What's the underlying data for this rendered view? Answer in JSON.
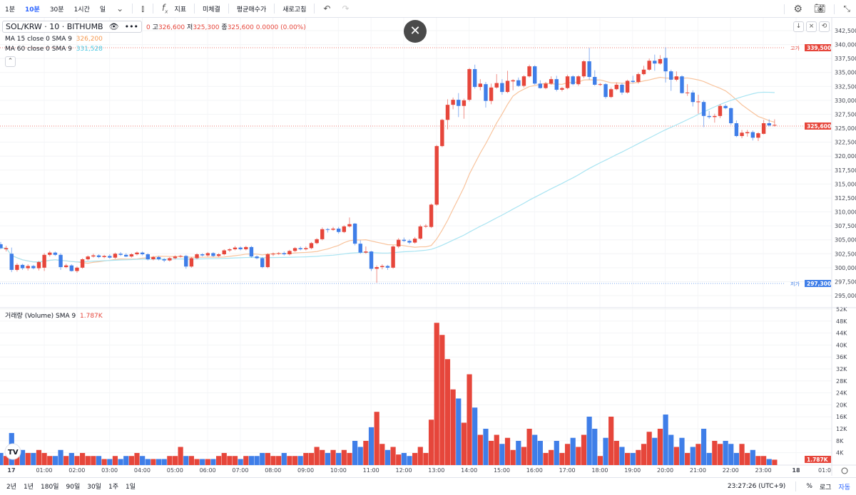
{
  "toolbar": {
    "intervals": [
      "1분",
      "10분",
      "30분",
      "1시간",
      "일"
    ],
    "active_interval": "10분",
    "indicators_label": "지표",
    "unfilled_label": "미체결",
    "avg_buy_label": "평균매수가",
    "refresh_label": "새로고침"
  },
  "legend": {
    "symbol": "SOL/KRW · 10 · BITHUMB",
    "ohlc_partial": "0",
    "high_label": "고",
    "high": "326,600",
    "low_label": "저",
    "low": "325,300",
    "close_label": "종",
    "close": "325,600",
    "change": "0.0000 (0.00%)",
    "ma15_label": "MA 15 close 0 SMA 9",
    "ma15_value": "326,200",
    "ma60_label": "MA 60 close 0 SMA 9",
    "ma60_value": "331,528",
    "volume_label": "거래량 (Volume) SMA 9",
    "volume_value": "1.787K"
  },
  "colors": {
    "up": "#e6463b",
    "down": "#3f7ee8",
    "ma15": "#f8c39c",
    "ma60": "#a8e4f2"
  },
  "price_axis": {
    "ticks": [
      "342,500",
      "340,000",
      "337,500",
      "335,000",
      "332,500",
      "330,000",
      "327,500",
      "325,000",
      "322,500",
      "320,000",
      "317,500",
      "315,000",
      "312,500",
      "310,000",
      "307,500",
      "305,000",
      "302,500",
      "300,000",
      "297,500",
      "295,000"
    ],
    "high_tag": "339,500",
    "high_tag_label": "고가",
    "current_tag": "325,600",
    "low_tag": "297,300",
    "low_tag_label": "저가"
  },
  "volume_axis": {
    "ticks": [
      "52K",
      "48K",
      "44K",
      "40K",
      "36K",
      "32K",
      "28K",
      "24K",
      "20K",
      "16K",
      "12K",
      "8K",
      "4K"
    ],
    "current_tag": "1.787K"
  },
  "time_axis": [
    "17",
    "01:00",
    "02:00",
    "03:00",
    "04:00",
    "05:00",
    "06:00",
    "07:00",
    "08:00",
    "09:00",
    "10:00",
    "11:00",
    "12:00",
    "13:00",
    "14:00",
    "15:00",
    "16:00",
    "17:00",
    "18:00",
    "19:00",
    "20:00",
    "21:00",
    "22:00",
    "23:00",
    "18",
    "01:0"
  ],
  "bottom": {
    "ranges": [
      "2년",
      "1년",
      "180일",
      "90일",
      "30일",
      "1주",
      "1일"
    ],
    "clock": "23:27:26 (UTC+9)",
    "percent": "%",
    "log": "로그",
    "auto": "자동"
  },
  "chart_data": {
    "type": "candlestick",
    "interval": "10m",
    "ma_periods": [
      15,
      60
    ],
    "candle_format": [
      "open",
      "high",
      "low",
      "close",
      "volume_K"
    ],
    "candles": [
      [
        304200,
        304600,
        303300,
        303500,
        4
      ],
      [
        303300,
        303900,
        302900,
        303500,
        3
      ],
      [
        302500,
        303600,
        299200,
        299600,
        10.6
      ],
      [
        299600,
        300800,
        299300,
        300500,
        6
      ],
      [
        300500,
        300700,
        299600,
        299900,
        5
      ],
      [
        299900,
        300600,
        299500,
        300300,
        4
      ],
      [
        300300,
        300500,
        299700,
        299900,
        4
      ],
      [
        299900,
        301200,
        299500,
        301000,
        5
      ],
      [
        300000,
        302600,
        299400,
        302300,
        4
      ],
      [
        302300,
        303000,
        302000,
        302700,
        3
      ],
      [
        302700,
        302900,
        302100,
        302300,
        3
      ],
      [
        302300,
        302600,
        299600,
        300100,
        5
      ],
      [
        300100,
        300700,
        299900,
        300400,
        3
      ],
      [
        300400,
        300600,
        299300,
        299400,
        4
      ],
      [
        299400,
        300200,
        299100,
        300000,
        3
      ],
      [
        300000,
        301700,
        299800,
        301500,
        4
      ],
      [
        301500,
        302200,
        301300,
        302000,
        3
      ],
      [
        302000,
        302500,
        301800,
        302200,
        3
      ],
      [
        302200,
        302400,
        301700,
        301900,
        3
      ],
      [
        301900,
        302300,
        301700,
        302100,
        2
      ],
      [
        302100,
        302400,
        301600,
        301800,
        2
      ],
      [
        301800,
        302700,
        301600,
        302500,
        3
      ],
      [
        302500,
        302800,
        302100,
        302300,
        2
      ],
      [
        302300,
        302600,
        301900,
        302000,
        3
      ],
      [
        302000,
        302600,
        301800,
        302400,
        3
      ],
      [
        302400,
        302900,
        302200,
        302700,
        4
      ],
      [
        302700,
        302900,
        302200,
        302400,
        3
      ],
      [
        302400,
        302600,
        301300,
        301500,
        2
      ],
      [
        301500,
        302100,
        301300,
        301900,
        2
      ],
      [
        301900,
        302100,
        301300,
        301500,
        2
      ],
      [
        301500,
        301700,
        301000,
        301300,
        2
      ],
      [
        301300,
        301900,
        301100,
        301700,
        3
      ],
      [
        301700,
        302200,
        301500,
        302000,
        3
      ],
      [
        302000,
        302300,
        301800,
        302100,
        6
      ],
      [
        302100,
        302300,
        299800,
        300200,
        3
      ],
      [
        300200,
        301900,
        300000,
        301700,
        3
      ],
      [
        301700,
        302600,
        301500,
        302400,
        2
      ],
      [
        302400,
        302600,
        302000,
        302200,
        2
      ],
      [
        302200,
        302800,
        302000,
        302600,
        2
      ],
      [
        302600,
        302800,
        301900,
        302100,
        2
      ],
      [
        302100,
        302600,
        301900,
        302400,
        3
      ],
      [
        302400,
        303300,
        302200,
        303100,
        4
      ],
      [
        303100,
        303500,
        302800,
        303300,
        3
      ],
      [
        303300,
        303900,
        303100,
        303600,
        3
      ],
      [
        303600,
        303800,
        303100,
        303300,
        2
      ],
      [
        303300,
        303900,
        303100,
        303700,
        3
      ],
      [
        303700,
        303900,
        301800,
        302000,
        3
      ],
      [
        302000,
        302200,
        301500,
        301700,
        3
      ],
      [
        301700,
        301900,
        299900,
        300100,
        4
      ],
      [
        300100,
        302600,
        299900,
        302400,
        4
      ],
      [
        302400,
        302700,
        302100,
        302500,
        3
      ],
      [
        302500,
        302800,
        302300,
        302600,
        3
      ],
      [
        302600,
        302900,
        302200,
        302400,
        4
      ],
      [
        302400,
        303200,
        302200,
        303000,
        3
      ],
      [
        303000,
        303700,
        302800,
        303500,
        3
      ],
      [
        303500,
        303800,
        303100,
        303300,
        3
      ],
      [
        303300,
        303800,
        303100,
        303500,
        4
      ],
      [
        303500,
        304600,
        303300,
        304400,
        4
      ],
      [
        304400,
        305300,
        304200,
        305100,
        6
      ],
      [
        305100,
        307200,
        304900,
        306900,
        5
      ],
      [
        306900,
        307100,
        306300,
        306800,
        4
      ],
      [
        306800,
        307300,
        306600,
        307000,
        5
      ],
      [
        307000,
        307300,
        306100,
        306400,
        4
      ],
      [
        306400,
        307600,
        306200,
        307400,
        5
      ],
      [
        307400,
        309000,
        307200,
        307800,
        4
      ],
      [
        307900,
        308000,
        304000,
        304300,
        8
      ],
      [
        304300,
        304900,
        302500,
        302700,
        6
      ],
      [
        302700,
        303800,
        302500,
        302900,
        8
      ],
      [
        302900,
        303000,
        299400,
        299800,
        12.5
      ],
      [
        299800,
        300400,
        297300,
        300100,
        17.6
      ],
      [
        300100,
        300600,
        299700,
        300300,
        7
      ],
      [
        300300,
        300500,
        299600,
        300000,
        5
      ],
      [
        300000,
        304000,
        299800,
        303800,
        6
      ],
      [
        303800,
        305300,
        303500,
        305000,
        3.5
      ],
      [
        305000,
        305400,
        304600,
        304800,
        4
      ],
      [
        304800,
        305100,
        304200,
        304500,
        3
      ],
      [
        304500,
        305500,
        304300,
        305200,
        4
      ],
      [
        305200,
        307700,
        305000,
        307400,
        6
      ],
      [
        307400,
        307800,
        307100,
        307500,
        4
      ],
      [
        307300,
        311500,
        307100,
        311300,
        15
      ],
      [
        311300,
        322000,
        311100,
        321800,
        47
      ],
      [
        321800,
        326700,
        321600,
        326500,
        43
      ],
      [
        326500,
        330200,
        324800,
        329200,
        35
      ],
      [
        329200,
        330500,
        328400,
        330100,
        25
      ],
      [
        330100,
        331300,
        327000,
        329000,
        22
      ],
      [
        329000,
        330300,
        326700,
        330000,
        14
      ],
      [
        330100,
        335800,
        329800,
        335600,
        30
      ],
      [
        335600,
        336400,
        332100,
        332400,
        19
      ],
      [
        332400,
        333800,
        331800,
        333000,
        10
      ],
      [
        332900,
        333300,
        328700,
        329900,
        12
      ],
      [
        329900,
        333000,
        329300,
        332300,
        8
      ],
      [
        332300,
        334700,
        332100,
        333100,
        10
      ],
      [
        333100,
        333800,
        331000,
        331500,
        7
      ],
      [
        331500,
        335300,
        331300,
        333500,
        9
      ],
      [
        333400,
        333800,
        331800,
        333600,
        5
      ],
      [
        333600,
        334100,
        332400,
        332600,
        8
      ],
      [
        332600,
        334500,
        332300,
        334300,
        6
      ],
      [
        334300,
        336400,
        334100,
        336100,
        12
      ],
      [
        336100,
        336300,
        332800,
        333000,
        10
      ],
      [
        333000,
        333600,
        332100,
        332200,
        8
      ],
      [
        332200,
        333300,
        332000,
        333000,
        4
      ],
      [
        333000,
        334300,
        332800,
        333800,
        5
      ],
      [
        333800,
        334400,
        331600,
        331900,
        8
      ],
      [
        331900,
        332400,
        331600,
        332200,
        4
      ],
      [
        332200,
        334600,
        332000,
        334300,
        7
      ],
      [
        334300,
        334500,
        332700,
        332900,
        9
      ],
      [
        332900,
        334500,
        332600,
        334300,
        6
      ],
      [
        334300,
        337200,
        334000,
        337000,
        10
      ],
      [
        337000,
        339400,
        333700,
        334200,
        16
      ],
      [
        334200,
        335400,
        332600,
        332800,
        12
      ],
      [
        332800,
        333100,
        332600,
        332900,
        3
      ],
      [
        332900,
        333100,
        330300,
        330600,
        9
      ],
      [
        330600,
        332300,
        330400,
        332000,
        16
      ],
      [
        332000,
        333200,
        331800,
        332800,
        8
      ],
      [
        332800,
        333100,
        331000,
        331400,
        6
      ],
      [
        331400,
        333700,
        331200,
        333500,
        4
      ],
      [
        333500,
        334400,
        333100,
        333300,
        4
      ],
      [
        333300,
        335000,
        333000,
        334700,
        5
      ],
      [
        334700,
        336200,
        334500,
        335500,
        7
      ],
      [
        335500,
        337500,
        335300,
        337100,
        11
      ],
      [
        337100,
        338200,
        335300,
        336600,
        9
      ],
      [
        336600,
        338100,
        336400,
        337400,
        12
      ],
      [
        337600,
        339500,
        333200,
        335200,
        16.7
      ],
      [
        335200,
        335500,
        331700,
        333700,
        10
      ],
      [
        333700,
        335200,
        333400,
        334300,
        6
      ],
      [
        334300,
        334500,
        331200,
        331300,
        9
      ],
      [
        331300,
        332900,
        330800,
        331400,
        4
      ],
      [
        331400,
        331800,
        328900,
        329700,
        6
      ],
      [
        329700,
        331000,
        327600,
        329800,
        7
      ],
      [
        329700,
        330000,
        325200,
        327200,
        12
      ],
      [
        327200,
        328100,
        326700,
        327000,
        4
      ],
      [
        327000,
        327600,
        326000,
        327200,
        8
      ],
      [
        327200,
        329300,
        326800,
        329000,
        7
      ],
      [
        329000,
        329300,
        328400,
        328600,
        8
      ],
      [
        328600,
        328700,
        325600,
        325900,
        7
      ],
      [
        325900,
        326400,
        323400,
        323600,
        4
      ],
      [
        323600,
        324700,
        323200,
        324200,
        7
      ],
      [
        324100,
        324700,
        323500,
        324300,
        4
      ],
      [
        324300,
        324600,
        322800,
        323300,
        5
      ],
      [
        323300,
        324300,
        322700,
        324100,
        3
      ],
      [
        324000,
        326500,
        323900,
        325900,
        3
      ],
      [
        325900,
        326600,
        325300,
        325500,
        2
      ],
      [
        325500,
        326600,
        325300,
        325600,
        1.787
      ]
    ]
  }
}
